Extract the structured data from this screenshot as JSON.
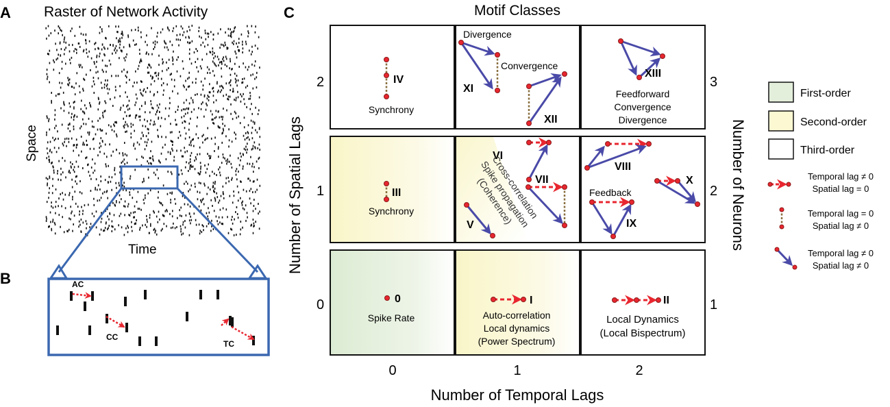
{
  "panel_a": {
    "letter": "A",
    "title": "Raster of Network Activity",
    "ylabel": "Space",
    "xlabel": "Time"
  },
  "panel_b": {
    "letter": "B",
    "labels": {
      "ac": "AC",
      "cc": "CC",
      "tc": "TC"
    }
  },
  "panel_c": {
    "letter": "C",
    "title": "Motif Classes",
    "xlabel": "Number of Temporal Lags",
    "ylabel": "Number of Spatial Lags",
    "right_label": "Number of Neurons",
    "x_ticks": [
      "0",
      "1",
      "2"
    ],
    "y_ticks": [
      "2",
      "1",
      "0"
    ],
    "neuron_ticks": [
      "3",
      "2",
      "1"
    ],
    "cells": {
      "r0c0": {
        "roman": "IV",
        "text": [
          "Synchrony"
        ]
      },
      "r0c1": {
        "top": "Divergence",
        "mid": "Convergence",
        "roman_a": "XI",
        "roman_b": "XII"
      },
      "r0c2": {
        "roman": "XIII",
        "text": [
          "Feedforward",
          "Convergence",
          "Divergence"
        ]
      },
      "r1c0": {
        "roman": "III",
        "text": [
          "Synchrony"
        ]
      },
      "r1c1": {
        "roman_a": "VI",
        "roman_b": "VII",
        "roman_c": "V",
        "diag": [
          "Cross-correlation",
          "Spike propagation",
          "(Coherence)"
        ]
      },
      "r1c2": {
        "roman_a": "VIII",
        "roman_b": "X",
        "roman_c": "IX",
        "label": "Feedback"
      },
      "r2c0": {
        "roman": "0",
        "text": [
          "Spike Rate"
        ]
      },
      "r2c1": {
        "roman": "I",
        "text": [
          "Auto-correlation",
          "Local dynamics",
          "(Power Spectrum)"
        ]
      },
      "r2c2": {
        "roman": "II",
        "text": [
          "Local Dynamics",
          "(Local Bispectrum)"
        ]
      }
    }
  },
  "legend": {
    "orders": [
      "First-order",
      "Second-order",
      "Third-order"
    ],
    "lag_items": [
      [
        "Temporal lag ≠ 0",
        "Spatial lag = 0"
      ],
      [
        "Temporal lag = 0",
        "Spatial lag ≠ 0"
      ],
      [
        "Temporal lag ≠ 0",
        "Spatial lag ≠ 0"
      ]
    ]
  },
  "colors": {
    "blue": "#4a4aa8",
    "red": "#e8262f",
    "dot_dark": "#8a1a1a",
    "brown": "#8a7040",
    "first_order": "#e3efdb",
    "second_order": "#fbf8d2",
    "panel_blue": "#3b68b0"
  }
}
